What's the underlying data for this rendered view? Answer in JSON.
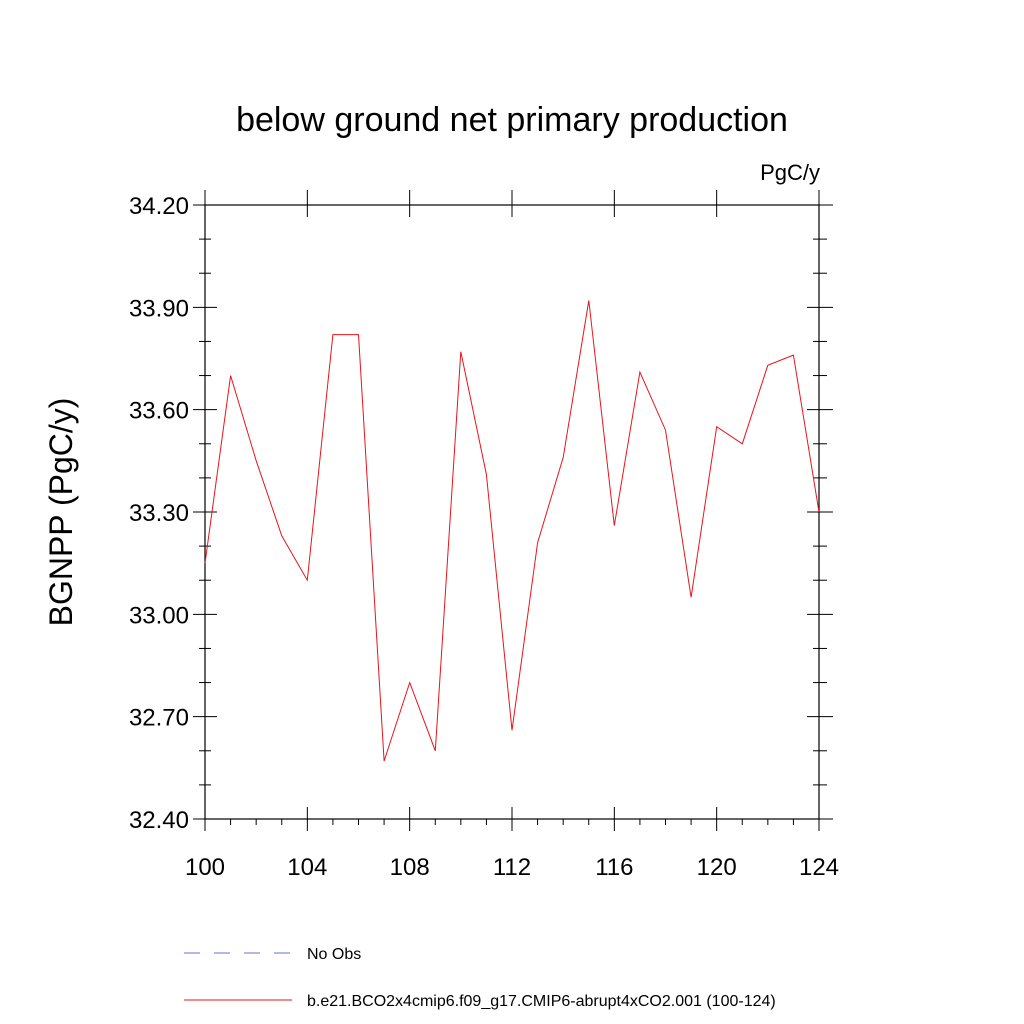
{
  "chart_data": {
    "type": "line",
    "title": "below ground net primary production",
    "units": "PgC/y",
    "ylabel": "BGNPP  (PgC/y)",
    "xlabel": "",
    "xlim": [
      100,
      124
    ],
    "ylim": [
      32.4,
      34.2
    ],
    "xticks": [
      100,
      104,
      108,
      112,
      116,
      120,
      124
    ],
    "xtick_labels": [
      "100",
      "104",
      "108",
      "112",
      "116",
      "120",
      "124"
    ],
    "yticks": [
      32.4,
      32.7,
      33.0,
      33.3,
      33.6,
      33.9,
      34.2
    ],
    "ytick_labels": [
      "32.40",
      "32.70",
      "33.00",
      "33.30",
      "33.60",
      "33.90",
      "34.20"
    ],
    "grid": false,
    "x": [
      100,
      101,
      102,
      103,
      104,
      105,
      106,
      107,
      108,
      109,
      110,
      111,
      112,
      113,
      114,
      115,
      116,
      117,
      118,
      119,
      120,
      121,
      122,
      123,
      124
    ],
    "series": [
      {
        "name": "b.e21.BCO2x4cmip6.f09_g17.CMIP6-abrupt4xCO2.001 (100-124)",
        "color": "#e8141b",
        "values": [
          33.15,
          33.7,
          33.45,
          33.23,
          33.1,
          33.82,
          33.82,
          32.57,
          32.8,
          32.6,
          33.77,
          33.41,
          32.66,
          33.21,
          33.46,
          33.92,
          33.26,
          33.71,
          33.54,
          33.05,
          33.55,
          33.5,
          33.73,
          33.76,
          33.3
        ]
      }
    ],
    "legend": [
      {
        "label": "No Obs",
        "color": "#6c6cd8",
        "style": "dashed"
      },
      {
        "label": "b.e21.BCO2x4cmip6.f09_g17.CMIP6-abrupt4xCO2.001 (100-124)",
        "color": "#e8141b",
        "style": "solid"
      }
    ],
    "legend_position": "bottom"
  }
}
